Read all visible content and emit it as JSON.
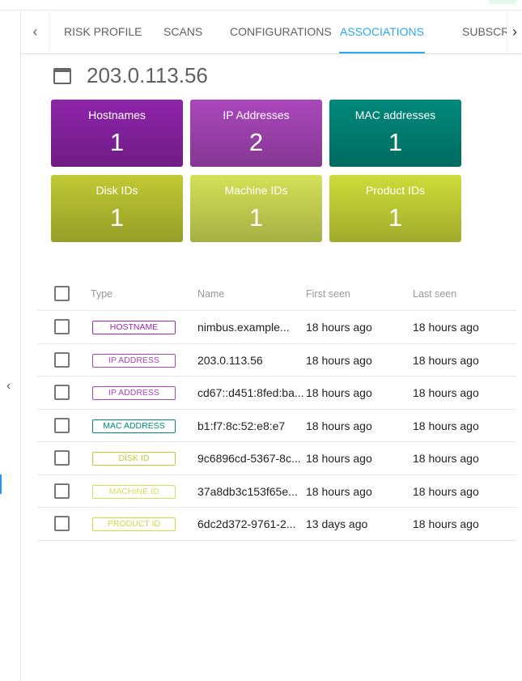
{
  "tabs": {
    "items": [
      {
        "label": "RISK PROFILE"
      },
      {
        "label": "SCANS"
      },
      {
        "label": "CONFIGURATIONS"
      },
      {
        "label": "ASSOCIATIONS",
        "active": true
      },
      {
        "label": "SUBSCRIPTIONS"
      }
    ],
    "accent": "#29a8f0"
  },
  "asset": {
    "title": "203.0.113.56",
    "icon": "window-icon"
  },
  "cards": [
    {
      "label": "Hostnames",
      "value": "1",
      "color": "#8e24aa"
    },
    {
      "label": "IP Addresses",
      "value": "2",
      "color": "#ab47bc"
    },
    {
      "label": "MAC addresses",
      "value": "1",
      "color": "#00897b"
    },
    {
      "label": "Disk IDs",
      "value": "1",
      "color": "#c0ca33"
    },
    {
      "label": "Machine IDs",
      "value": "1",
      "color": "#d4e157"
    },
    {
      "label": "Product IDs",
      "value": "1",
      "color": "#cddc39"
    }
  ],
  "table": {
    "headers": {
      "type": "Type",
      "name": "Name",
      "first_seen": "First seen",
      "last_seen": "Last seen"
    },
    "rows": [
      {
        "type": "HOSTNAME",
        "color": "#9c27b0",
        "name": "nimbus.example...",
        "first_seen": "18 hours ago",
        "last_seen": "18 hours ago"
      },
      {
        "type": "IP ADDRESS",
        "color": "#ab47bc",
        "name": "203.0.113.56",
        "first_seen": "18 hours ago",
        "last_seen": "18 hours ago"
      },
      {
        "type": "IP ADDRESS",
        "color": "#ab47bc",
        "name": "cd67::d451:8fed:ba...",
        "first_seen": "18 hours ago",
        "last_seen": "18 hours ago"
      },
      {
        "type": "MAC ADDRESS",
        "color": "#00897b",
        "name": "b1:f7:8c:52:e8:e7",
        "first_seen": "18 hours ago",
        "last_seen": "18 hours ago"
      },
      {
        "type": "DISK ID",
        "color": "#c0ca33",
        "name": "9c6896cd-5367-8c...",
        "first_seen": "18 hours ago",
        "last_seen": "18 hours ago"
      },
      {
        "type": "MACHINE ID",
        "color": "#d4e157",
        "name": "37a8db3c153f65e...",
        "first_seen": "18 hours ago",
        "last_seen": "18 hours ago"
      },
      {
        "type": "PRODUCT ID",
        "color": "#cddc39",
        "name": "6dc2d372-9761-2...",
        "first_seen": "13 days ago",
        "last_seen": "18 hours ago"
      }
    ]
  }
}
